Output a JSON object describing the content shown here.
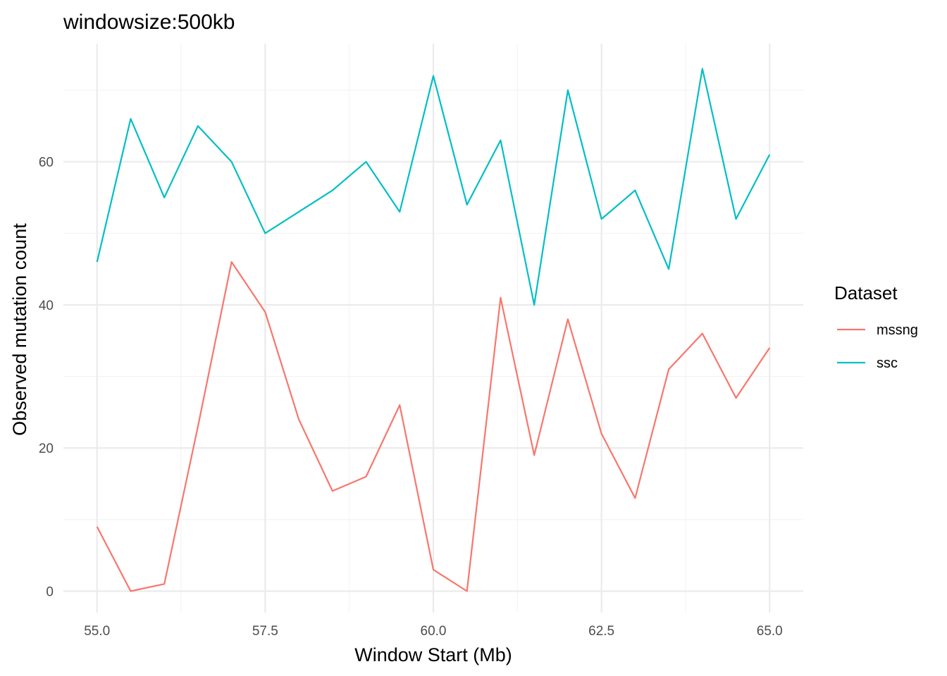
{
  "chart_data": {
    "type": "line",
    "title": "windowsize:500kb",
    "xlabel": "Window Start (Mb)",
    "ylabel": "Observed mutation count",
    "xlim": [
      54.5,
      65.5
    ],
    "ylim": [
      -3,
      76.5
    ],
    "x_ticks": [
      "55.0",
      "57.5",
      "60.0",
      "62.5",
      "65.0"
    ],
    "y_ticks": [
      "0",
      "20",
      "40",
      "60"
    ],
    "grid": true,
    "legend": {
      "title": "Dataset",
      "position": "right"
    },
    "x": [
      55.0,
      55.5,
      56.0,
      56.5,
      57.0,
      57.5,
      58.0,
      58.5,
      59.0,
      59.5,
      60.0,
      60.5,
      61.0,
      61.5,
      62.0,
      62.5,
      63.0,
      63.5,
      64.0,
      64.5,
      65.0
    ],
    "series": [
      {
        "name": "mssng",
        "color": "#F8766D",
        "values": [
          9,
          0,
          1,
          23,
          46,
          39,
          24,
          14,
          16,
          26,
          3,
          0,
          41,
          19,
          38,
          22,
          13,
          31,
          36,
          27,
          34
        ]
      },
      {
        "name": "ssc",
        "color": "#00BFC4",
        "values": [
          46,
          66,
          55,
          65,
          60,
          50,
          53,
          56,
          60,
          53,
          72,
          54,
          63,
          40,
          70,
          52,
          56,
          45,
          73,
          52,
          61
        ]
      }
    ]
  }
}
